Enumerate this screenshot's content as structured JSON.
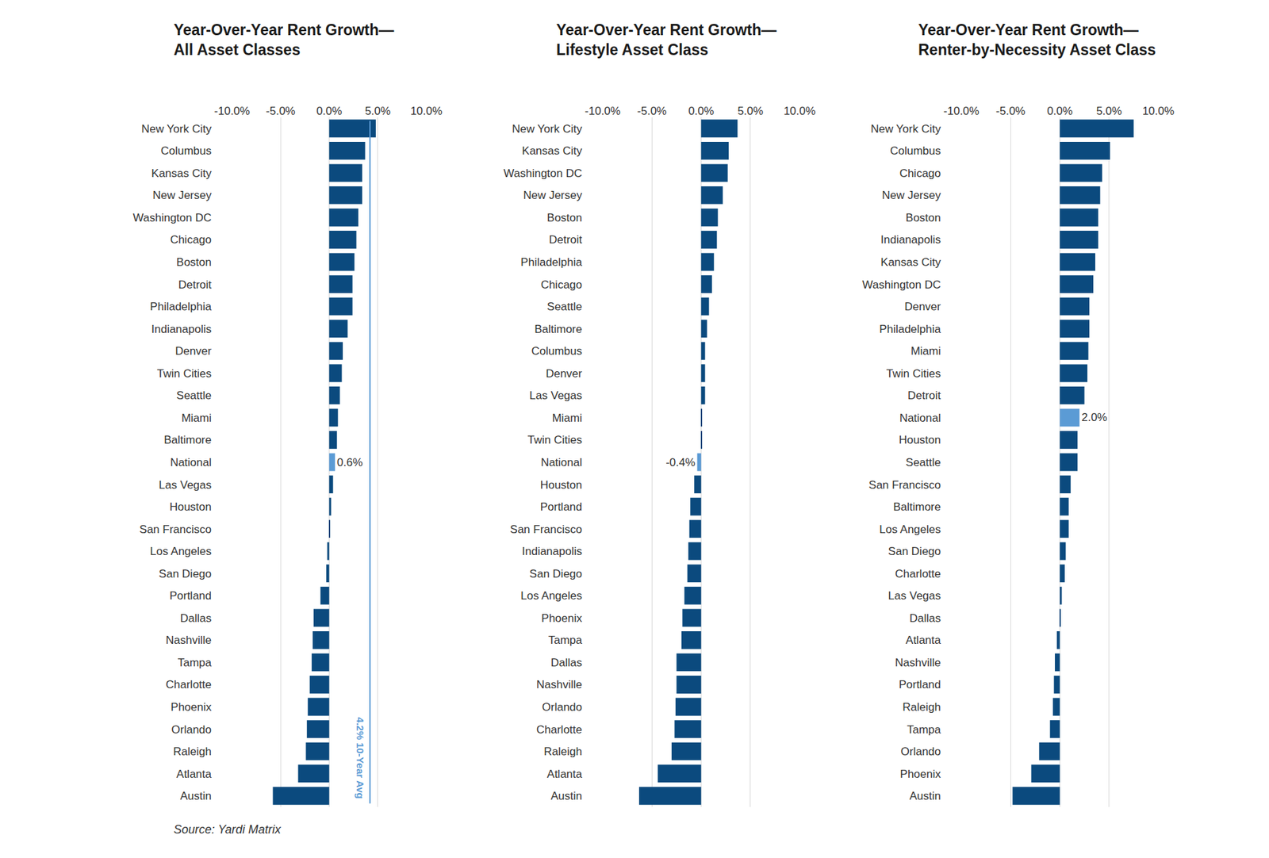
{
  "chart_data": [
    {
      "type": "bar",
      "orientation": "horizontal",
      "title": "Year-Over-Year Rent Growth—\nAll Asset Classes",
      "categories": [
        "New York City",
        "Columbus",
        "Kansas City",
        "New Jersey",
        "Washington DC",
        "Chicago",
        "Boston",
        "Detroit",
        "Philadelphia",
        "Indianapolis",
        "Denver",
        "Twin Cities",
        "Seattle",
        "Miami",
        "Baltimore",
        "National",
        "Las Vegas",
        "Houston",
        "San Francisco",
        "Los Angeles",
        "San Diego",
        "Portland",
        "Dallas",
        "Nashville",
        "Tampa",
        "Charlotte",
        "Phoenix",
        "Orlando",
        "Raleigh",
        "Atlanta",
        "Austin"
      ],
      "values": [
        4.8,
        3.7,
        3.4,
        3.4,
        3.0,
        2.8,
        2.6,
        2.4,
        2.4,
        1.9,
        1.4,
        1.3,
        1.1,
        0.9,
        0.8,
        0.6,
        0.4,
        0.2,
        0.1,
        -0.2,
        -0.3,
        -0.9,
        -1.6,
        -1.7,
        -1.8,
        -2.0,
        -2.2,
        -2.3,
        -2.4,
        -3.2,
        -5.8
      ],
      "value_labels": [
        null,
        null,
        null,
        null,
        null,
        null,
        null,
        null,
        null,
        null,
        null,
        null,
        null,
        null,
        null,
        "0.6%",
        null,
        null,
        null,
        null,
        null,
        null,
        null,
        null,
        null,
        null,
        null,
        null,
        null,
        null,
        null
      ],
      "colors": [
        "#0b4a7e",
        "#0b4a7e",
        "#0b4a7e",
        "#0b4a7e",
        "#0b4a7e",
        "#0b4a7e",
        "#0b4a7e",
        "#0b4a7e",
        "#0b4a7e",
        "#0b4a7e",
        "#0b4a7e",
        "#0b4a7e",
        "#0b4a7e",
        "#0b4a7e",
        "#0b4a7e",
        "#5b9bd5",
        "#0b4a7e",
        "#0b4a7e",
        "#0b4a7e",
        "#0b4a7e",
        "#0b4a7e",
        "#0b4a7e",
        "#0b4a7e",
        "#0b4a7e",
        "#0b4a7e",
        "#0b4a7e",
        "#0b4a7e",
        "#0b4a7e",
        "#0b4a7e",
        "#0b4a7e",
        "#0b4a7e"
      ],
      "xlim": [
        -10,
        10
      ],
      "xticks": [
        {
          "value": -10,
          "label": "-10.0%"
        },
        {
          "value": -5,
          "label": "-5.0%"
        },
        {
          "value": 0,
          "label": "0.0%"
        },
        {
          "value": 5,
          "label": "5.0%"
        },
        {
          "value": 10,
          "label": "10.0%"
        }
      ],
      "grid": true,
      "reference_line": {
        "value": 4.2,
        "label": "4.2% 10-Year Avg",
        "color": "#5b9bd5"
      }
    },
    {
      "type": "bar",
      "orientation": "horizontal",
      "title": "Year-Over-Year Rent Growth—\nLifestyle Asset Class",
      "categories": [
        "New York City",
        "Kansas City",
        "Washington DC",
        "New Jersey",
        "Boston",
        "Detroit",
        "Philadelphia",
        "Chicago",
        "Seattle",
        "Baltimore",
        "Columbus",
        "Denver",
        "Las Vegas",
        "Miami",
        "Twin Cities",
        "National",
        "Houston",
        "Portland",
        "San Francisco",
        "Indianapolis",
        "San Diego",
        "Los Angeles",
        "Phoenix",
        "Tampa",
        "Dallas",
        "Nashville",
        "Orlando",
        "Charlotte",
        "Raleigh",
        "Atlanta",
        "Austin"
      ],
      "values": [
        3.7,
        2.8,
        2.7,
        2.2,
        1.7,
        1.6,
        1.3,
        1.1,
        0.8,
        0.6,
        0.4,
        0.4,
        0.4,
        0.1,
        0.1,
        -0.4,
        -0.7,
        -1.1,
        -1.2,
        -1.3,
        -1.4,
        -1.7,
        -1.9,
        -2.0,
        -2.5,
        -2.5,
        -2.6,
        -2.7,
        -3.0,
        -4.4,
        -6.3
      ],
      "value_labels": [
        null,
        null,
        null,
        null,
        null,
        null,
        null,
        null,
        null,
        null,
        null,
        null,
        null,
        null,
        null,
        "-0.4%",
        null,
        null,
        null,
        null,
        null,
        null,
        null,
        null,
        null,
        null,
        null,
        null,
        null,
        null,
        null
      ],
      "colors": [
        "#0b4a7e",
        "#0b4a7e",
        "#0b4a7e",
        "#0b4a7e",
        "#0b4a7e",
        "#0b4a7e",
        "#0b4a7e",
        "#0b4a7e",
        "#0b4a7e",
        "#0b4a7e",
        "#0b4a7e",
        "#0b4a7e",
        "#0b4a7e",
        "#0b4a7e",
        "#0b4a7e",
        "#5b9bd5",
        "#0b4a7e",
        "#0b4a7e",
        "#0b4a7e",
        "#0b4a7e",
        "#0b4a7e",
        "#0b4a7e",
        "#0b4a7e",
        "#0b4a7e",
        "#0b4a7e",
        "#0b4a7e",
        "#0b4a7e",
        "#0b4a7e",
        "#0b4a7e",
        "#0b4a7e",
        "#0b4a7e"
      ],
      "xlim": [
        -10,
        10
      ],
      "xticks": [
        {
          "value": -10,
          "label": "-10.0%"
        },
        {
          "value": -5,
          "label": "-5.0%"
        },
        {
          "value": 0,
          "label": "0.0%"
        },
        {
          "value": 5,
          "label": "5.0%"
        },
        {
          "value": 10,
          "label": "10.0%"
        }
      ],
      "grid": true
    },
    {
      "type": "bar",
      "orientation": "horizontal",
      "title": "Year-Over-Year Rent Growth—\nRenter-by-Necessity Asset Class",
      "categories": [
        "New York City",
        "Columbus",
        "Chicago",
        "New Jersey",
        "Boston",
        "Indianapolis",
        "Kansas City",
        "Washington DC",
        "Denver",
        "Philadelphia",
        "Miami",
        "Twin Cities",
        "Detroit",
        "National",
        "Houston",
        "Seattle",
        "San Francisco",
        "Baltimore",
        "Los Angeles",
        "San Diego",
        "Charlotte",
        "Las Vegas",
        "Dallas",
        "Atlanta",
        "Nashville",
        "Portland",
        "Raleigh",
        "Tampa",
        "Orlando",
        "Phoenix",
        "Austin"
      ],
      "values": [
        7.5,
        5.1,
        4.3,
        4.1,
        3.9,
        3.9,
        3.6,
        3.4,
        3.0,
        3.0,
        2.9,
        2.8,
        2.5,
        2.0,
        1.8,
        1.8,
        1.1,
        0.9,
        0.9,
        0.6,
        0.5,
        0.2,
        0.1,
        -0.3,
        -0.5,
        -0.6,
        -0.7,
        -1.0,
        -2.1,
        -2.9,
        -4.8
      ],
      "value_labels": [
        null,
        null,
        null,
        null,
        null,
        null,
        null,
        null,
        null,
        null,
        null,
        null,
        null,
        "2.0%",
        null,
        null,
        null,
        null,
        null,
        null,
        null,
        null,
        null,
        null,
        null,
        null,
        null,
        null,
        null,
        null,
        null
      ],
      "colors": [
        "#0b4a7e",
        "#0b4a7e",
        "#0b4a7e",
        "#0b4a7e",
        "#0b4a7e",
        "#0b4a7e",
        "#0b4a7e",
        "#0b4a7e",
        "#0b4a7e",
        "#0b4a7e",
        "#0b4a7e",
        "#0b4a7e",
        "#0b4a7e",
        "#5b9bd5",
        "#0b4a7e",
        "#0b4a7e",
        "#0b4a7e",
        "#0b4a7e",
        "#0b4a7e",
        "#0b4a7e",
        "#0b4a7e",
        "#0b4a7e",
        "#0b4a7e",
        "#0b4a7e",
        "#0b4a7e",
        "#0b4a7e",
        "#0b4a7e",
        "#0b4a7e",
        "#0b4a7e",
        "#0b4a7e",
        "#0b4a7e"
      ],
      "xlim": [
        -10,
        10
      ],
      "xticks": [
        {
          "value": -10,
          "label": "-10.0%"
        },
        {
          "value": -5,
          "label": "-5.0%"
        },
        {
          "value": 0,
          "label": "0.0%"
        },
        {
          "value": 5,
          "label": "5.0%"
        },
        {
          "value": 10,
          "label": "10.0%"
        }
      ],
      "grid": true
    }
  ],
  "source": "Source: Yardi Matrix"
}
